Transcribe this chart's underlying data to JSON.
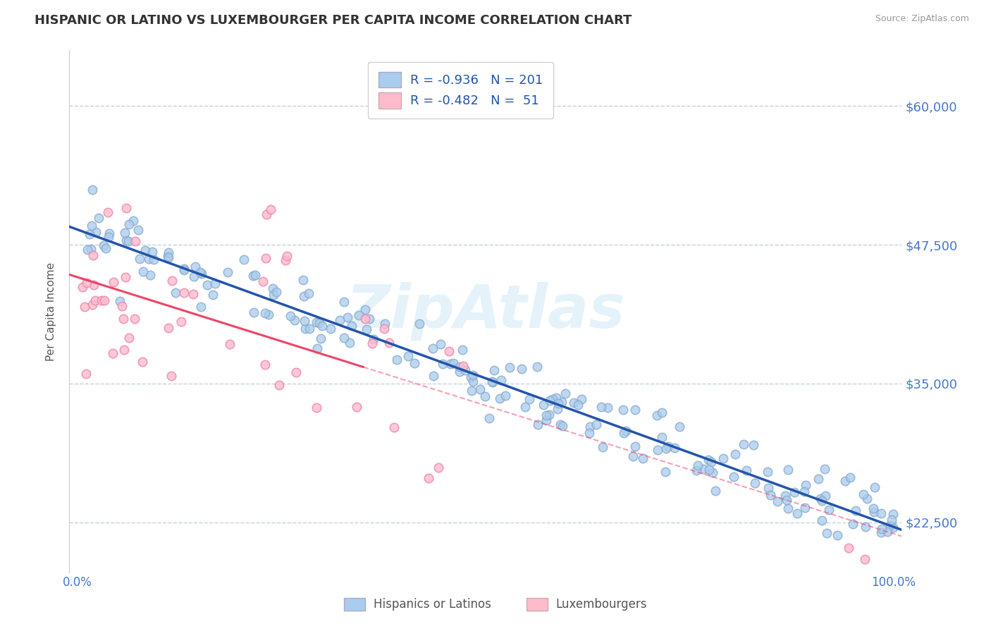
{
  "title": "HISPANIC OR LATINO VS LUXEMBOURGER PER CAPITA INCOME CORRELATION CHART",
  "source": "Source: ZipAtlas.com",
  "ylabel": "Per Capita Income",
  "xlim": [
    -1,
    101
  ],
  "ylim": [
    18000,
    65000
  ],
  "yticks": [
    22500,
    35000,
    47500,
    60000
  ],
  "ytick_labels": [
    "$22,500",
    "$35,000",
    "$47,500",
    "$60,000"
  ],
  "xtick_vals": [
    0.0,
    100.0
  ],
  "xtick_labels": [
    "0.0%",
    "100.0%"
  ],
  "blue_color": "#AACCEE",
  "blue_edge_color": "#88AACC",
  "pink_color": "#FFBBCC",
  "pink_edge_color": "#EE88AA",
  "blue_line_color": "#2255AA",
  "pink_line_color": "#EE4466",
  "R_blue": -0.936,
  "N_blue": 201,
  "R_pink": -0.482,
  "N_pink": 51,
  "legend_label_blue": "Hispanics or Latinos",
  "legend_label_pink": "Luxembourgers",
  "title_color": "#333333",
  "axis_tick_color": "#4477CC",
  "watermark": "ZipAtlas",
  "grid_color": "#BBCCDD",
  "blue_intercept": 48500,
  "blue_slope": -260,
  "pink_intercept": 43000,
  "pink_slope": -480
}
